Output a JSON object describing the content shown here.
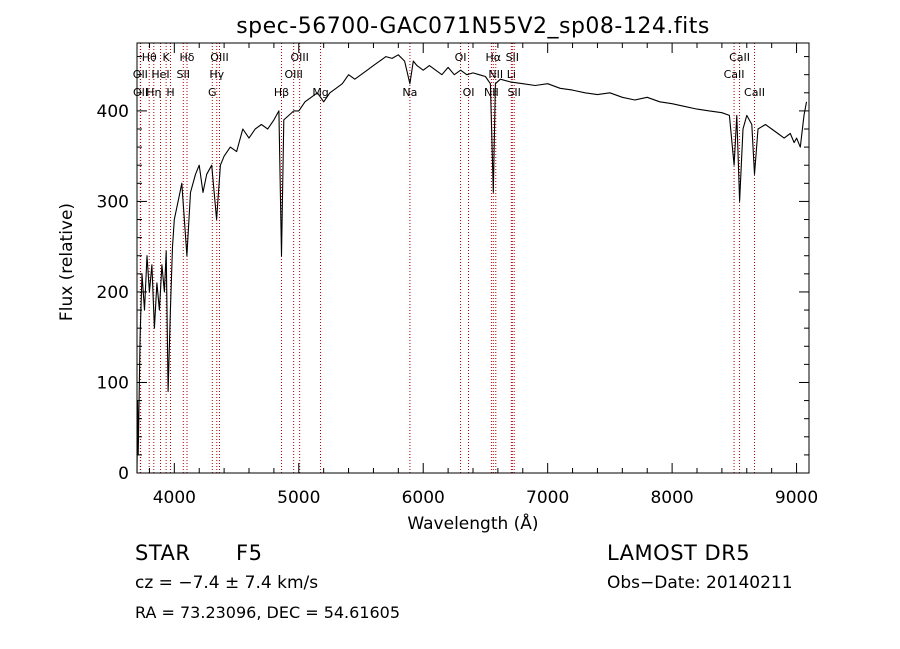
{
  "chart_data": {
    "type": "line",
    "title": "spec-56700-GAC071N55V2_sp08-124.fits",
    "xlabel": "Wavelength (Å)",
    "ylabel": "Flux (relative)",
    "xlim": [
      3700,
      9100
    ],
    "ylim": [
      0,
      475
    ],
    "xticks": [
      4000,
      5000,
      6000,
      7000,
      8000,
      9000
    ],
    "xtick_labels": [
      "4000",
      "5000",
      "6000",
      "7000",
      "8000",
      "9000"
    ],
    "yticks": [
      0,
      100,
      200,
      300,
      400
    ],
    "ytick_labels": [
      "0",
      "100",
      "200",
      "300",
      "400"
    ],
    "grid": false,
    "series": [
      {
        "x": [
          3700,
          3705,
          3710,
          3725,
          3740,
          3760,
          3780,
          3800,
          3820,
          3840,
          3860,
          3880,
          3900,
          3920,
          3935,
          3950,
          3968,
          3985,
          4000,
          4030,
          4060,
          4101,
          4130,
          4170,
          4200,
          4230,
          4260,
          4300,
          4340,
          4370,
          4400,
          4450,
          4500,
          4550,
          4600,
          4650,
          4700,
          4750,
          4800,
          4840,
          4861,
          4880,
          4920,
          4960,
          5000,
          5050,
          5100,
          5150,
          5200,
          5250,
          5300,
          5350,
          5400,
          5450,
          5500,
          5550,
          5600,
          5650,
          5700,
          5750,
          5800,
          5850,
          5893,
          5920,
          5950,
          6000,
          6050,
          6100,
          6150,
          6200,
          6250,
          6300,
          6350,
          6400,
          6450,
          6500,
          6540,
          6563,
          6580,
          6620,
          6700,
          6800,
          6900,
          7000,
          7100,
          7200,
          7300,
          7400,
          7500,
          7600,
          7700,
          7800,
          7900,
          8000,
          8100,
          8200,
          8300,
          8400,
          8460,
          8498,
          8520,
          8542,
          8570,
          8600,
          8640,
          8662,
          8690,
          8750,
          8800,
          8850,
          8900,
          8950,
          8980,
          9000,
          9030,
          9060,
          9080
        ],
        "y": [
          0,
          80,
          20,
          150,
          220,
          180,
          240,
          200,
          230,
          160,
          210,
          180,
          230,
          200,
          245,
          90,
          180,
          250,
          280,
          300,
          320,
          240,
          310,
          330,
          340,
          310,
          330,
          340,
          280,
          340,
          350,
          360,
          355,
          380,
          370,
          380,
          385,
          380,
          390,
          400,
          240,
          390,
          395,
          400,
          400,
          410,
          415,
          420,
          410,
          420,
          425,
          430,
          440,
          435,
          440,
          445,
          450,
          455,
          460,
          458,
          462,
          455,
          430,
          455,
          450,
          445,
          450,
          445,
          440,
          448,
          440,
          445,
          440,
          442,
          440,
          438,
          430,
          310,
          430,
          435,
          432,
          430,
          428,
          430,
          425,
          423,
          420,
          418,
          420,
          415,
          412,
          415,
          410,
          408,
          405,
          402,
          400,
          398,
          395,
          340,
          395,
          300,
          380,
          395,
          385,
          330,
          380,
          385,
          380,
          375,
          370,
          375,
          365,
          370,
          360,
          395,
          410
        ]
      }
    ],
    "annotations": [
      {
        "label": "Hθ",
        "x": 3798,
        "row": 0
      },
      {
        "label": "OII",
        "x": 3727,
        "row": 1
      },
      {
        "label": "OII",
        "x": 3729,
        "row": 2
      },
      {
        "label": "Hη",
        "x": 3835,
        "row": 2
      },
      {
        "label": "HeI",
        "x": 3889,
        "row": 1
      },
      {
        "label": "K",
        "x": 3934,
        "row": 0
      },
      {
        "label": "H",
        "x": 3969,
        "row": 2
      },
      {
        "label": "SII",
        "x": 4072,
        "row": 1
      },
      {
        "label": "Hδ",
        "x": 4102,
        "row": 0
      },
      {
        "label": "Hγ",
        "x": 4341,
        "row": 1
      },
      {
        "label": "OIII",
        "x": 4363,
        "row": 0
      },
      {
        "label": "G",
        "x": 4305,
        "row": 2
      },
      {
        "label": "Hβ",
        "x": 4861,
        "row": 2
      },
      {
        "label": "OIII",
        "x": 4959,
        "row": 1
      },
      {
        "label": "OIII",
        "x": 5007,
        "row": 0
      },
      {
        "label": "Mg",
        "x": 5175,
        "row": 2
      },
      {
        "label": "Na",
        "x": 5893,
        "row": 2
      },
      {
        "label": "OI",
        "x": 6300,
        "row": 0
      },
      {
        "label": "OI",
        "x": 6364,
        "row": 2
      },
      {
        "label": "NII",
        "x": 6548,
        "row": 2
      },
      {
        "label": "Hα",
        "x": 6563,
        "row": 0
      },
      {
        "label": "NII",
        "x": 6583,
        "row": 1
      },
      {
        "label": "Li",
        "x": 6708,
        "row": 1
      },
      {
        "label": "SII",
        "x": 6716,
        "row": 0
      },
      {
        "label": "SII",
        "x": 6731,
        "row": 2
      },
      {
        "label": "CaII",
        "x": 8498,
        "row": 1
      },
      {
        "label": "CaII",
        "x": 8542,
        "row": 0
      },
      {
        "label": "CaII",
        "x": 8662,
        "row": 2
      }
    ]
  },
  "info": {
    "object_class": "STAR",
    "subclass": "F5",
    "survey": "LAMOST DR5",
    "velocity": "cz = −7.4 ± 7.4 km/s",
    "obs_date": "Obs−Date: 20140211",
    "coords": "RA =  73.23096, DEC =  54.61605"
  },
  "colors": {
    "line": "#000000",
    "marker_lines": "#b00000"
  }
}
